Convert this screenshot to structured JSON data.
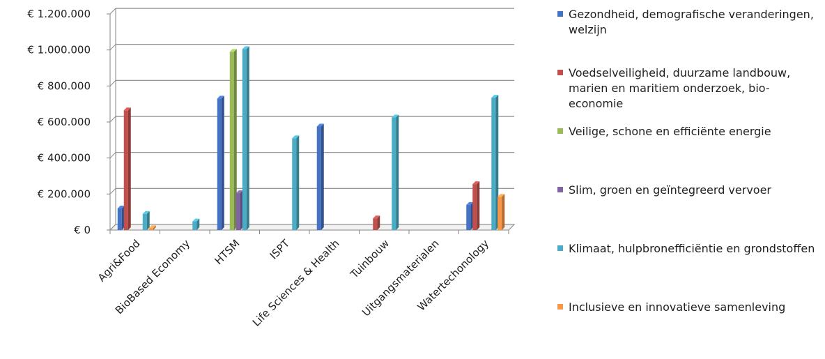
{
  "chart_data": {
    "type": "bar",
    "title": "",
    "xlabel": "",
    "ylabel": "",
    "categories": [
      "Agri&Food",
      "BioBased Economy",
      "HTSM",
      "ISPT",
      "Life Sciences & Health",
      "Tuinbouw",
      "Uitgangsmaterialen",
      "Watertechonology"
    ],
    "ylim": [
      0,
      1200000
    ],
    "y_ticks": [
      0,
      200000,
      400000,
      600000,
      800000,
      1000000,
      1200000
    ],
    "y_tick_labels": [
      "€ 0",
      "€ 200.000",
      "€ 400.000",
      "€ 600.000",
      "€ 800.000",
      "€ 1.000.000",
      "€ 1.200.000"
    ],
    "grid": true,
    "legend_position": "right",
    "series": [
      {
        "name": "Gezondheid, demografische veranderingen, welzijn",
        "color": "#4472C4",
        "values": [
          120000,
          0,
          730000,
          0,
          575000,
          0,
          0,
          140000
        ]
      },
      {
        "name": "Voedselveiligheid, duurzame landbouw, marien en maritiem onderzoek, bio-economie",
        "color": "#C0504D",
        "values": [
          665000,
          0,
          0,
          0,
          0,
          65000,
          0,
          255000
        ]
      },
      {
        "name": "Veilige, schone en efficiënte energie",
        "color": "#9BBB59",
        "values": [
          0,
          0,
          990000,
          0,
          0,
          0,
          0,
          0
        ]
      },
      {
        "name": "Slim, groen en geïntegreerd vervoer",
        "color": "#8064A2",
        "values": [
          0,
          0,
          205000,
          0,
          0,
          0,
          0,
          0
        ]
      },
      {
        "name": "Klimaat, hulpbronefficiëntie en grondstoffen",
        "color": "#4BACC6",
        "values": [
          90000,
          48000,
          1005000,
          510000,
          0,
          625000,
          0,
          735000
        ]
      },
      {
        "name": "Inclusieve en innovatieve samenleving",
        "color": "#F79646",
        "values": [
          10000,
          0,
          0,
          0,
          0,
          0,
          0,
          185000
        ]
      }
    ]
  }
}
